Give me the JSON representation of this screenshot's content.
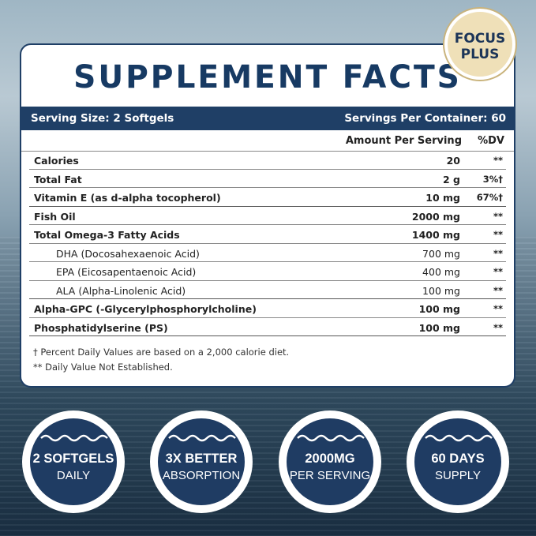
{
  "badge": {
    "line1": "FOCUS",
    "line2": "PLUS"
  },
  "title": "SUPPLEMENT FACTS",
  "serving": {
    "size": "Serving Size: 2 Softgels",
    "per_container": "Servings Per Container: 60"
  },
  "header": {
    "amount": "Amount Per Serving",
    "dv": "%DV"
  },
  "rows": [
    {
      "name": "Calories",
      "value": "20",
      "dv": "**"
    },
    {
      "name": "Total Fat",
      "value": "2 g",
      "dv": "3%†"
    },
    {
      "name": "Vitamin E (as d-alpha tocopherol)",
      "value": "10 mg",
      "dv": "67%†"
    },
    {
      "name": "Fish Oil",
      "value": "2000 mg",
      "dv": "**"
    },
    {
      "name": "Total Omega-3 Fatty Acids",
      "value": "1400 mg",
      "dv": "**"
    },
    {
      "name": "DHA (Docosahexaenoic Acid)",
      "value": "700 mg",
      "dv": "**"
    },
    {
      "name": "EPA (Eicosapentaenoic Acid)",
      "value": "400 mg",
      "dv": "**"
    },
    {
      "name": "ALA (Alpha-Linolenic Acid)",
      "value": "100 mg",
      "dv": "**"
    },
    {
      "name": "Alpha-GPC (-Glycerylphosphorylcholine)",
      "value": "100 mg",
      "dv": "**"
    },
    {
      "name": "Phosphatidylserine (PS)",
      "value": "100 mg",
      "dv": "**"
    }
  ],
  "footnotes": [
    "† Percent Daily Values are based on a 2,000 calorie diet.",
    "** Daily Value Not Established."
  ],
  "features": [
    {
      "top": "2 SOFTGELS",
      "bottom": "DAILY"
    },
    {
      "top": "3X BETTER",
      "bottom": "ABSORPTION"
    },
    {
      "top": "2000MG",
      "bottom": "PER SERVING"
    },
    {
      "top": "60 DAYS",
      "bottom": "SUPPLY"
    }
  ],
  "colors": {
    "navy": "#1f3f66",
    "badge_bg": "#efe0b8"
  }
}
